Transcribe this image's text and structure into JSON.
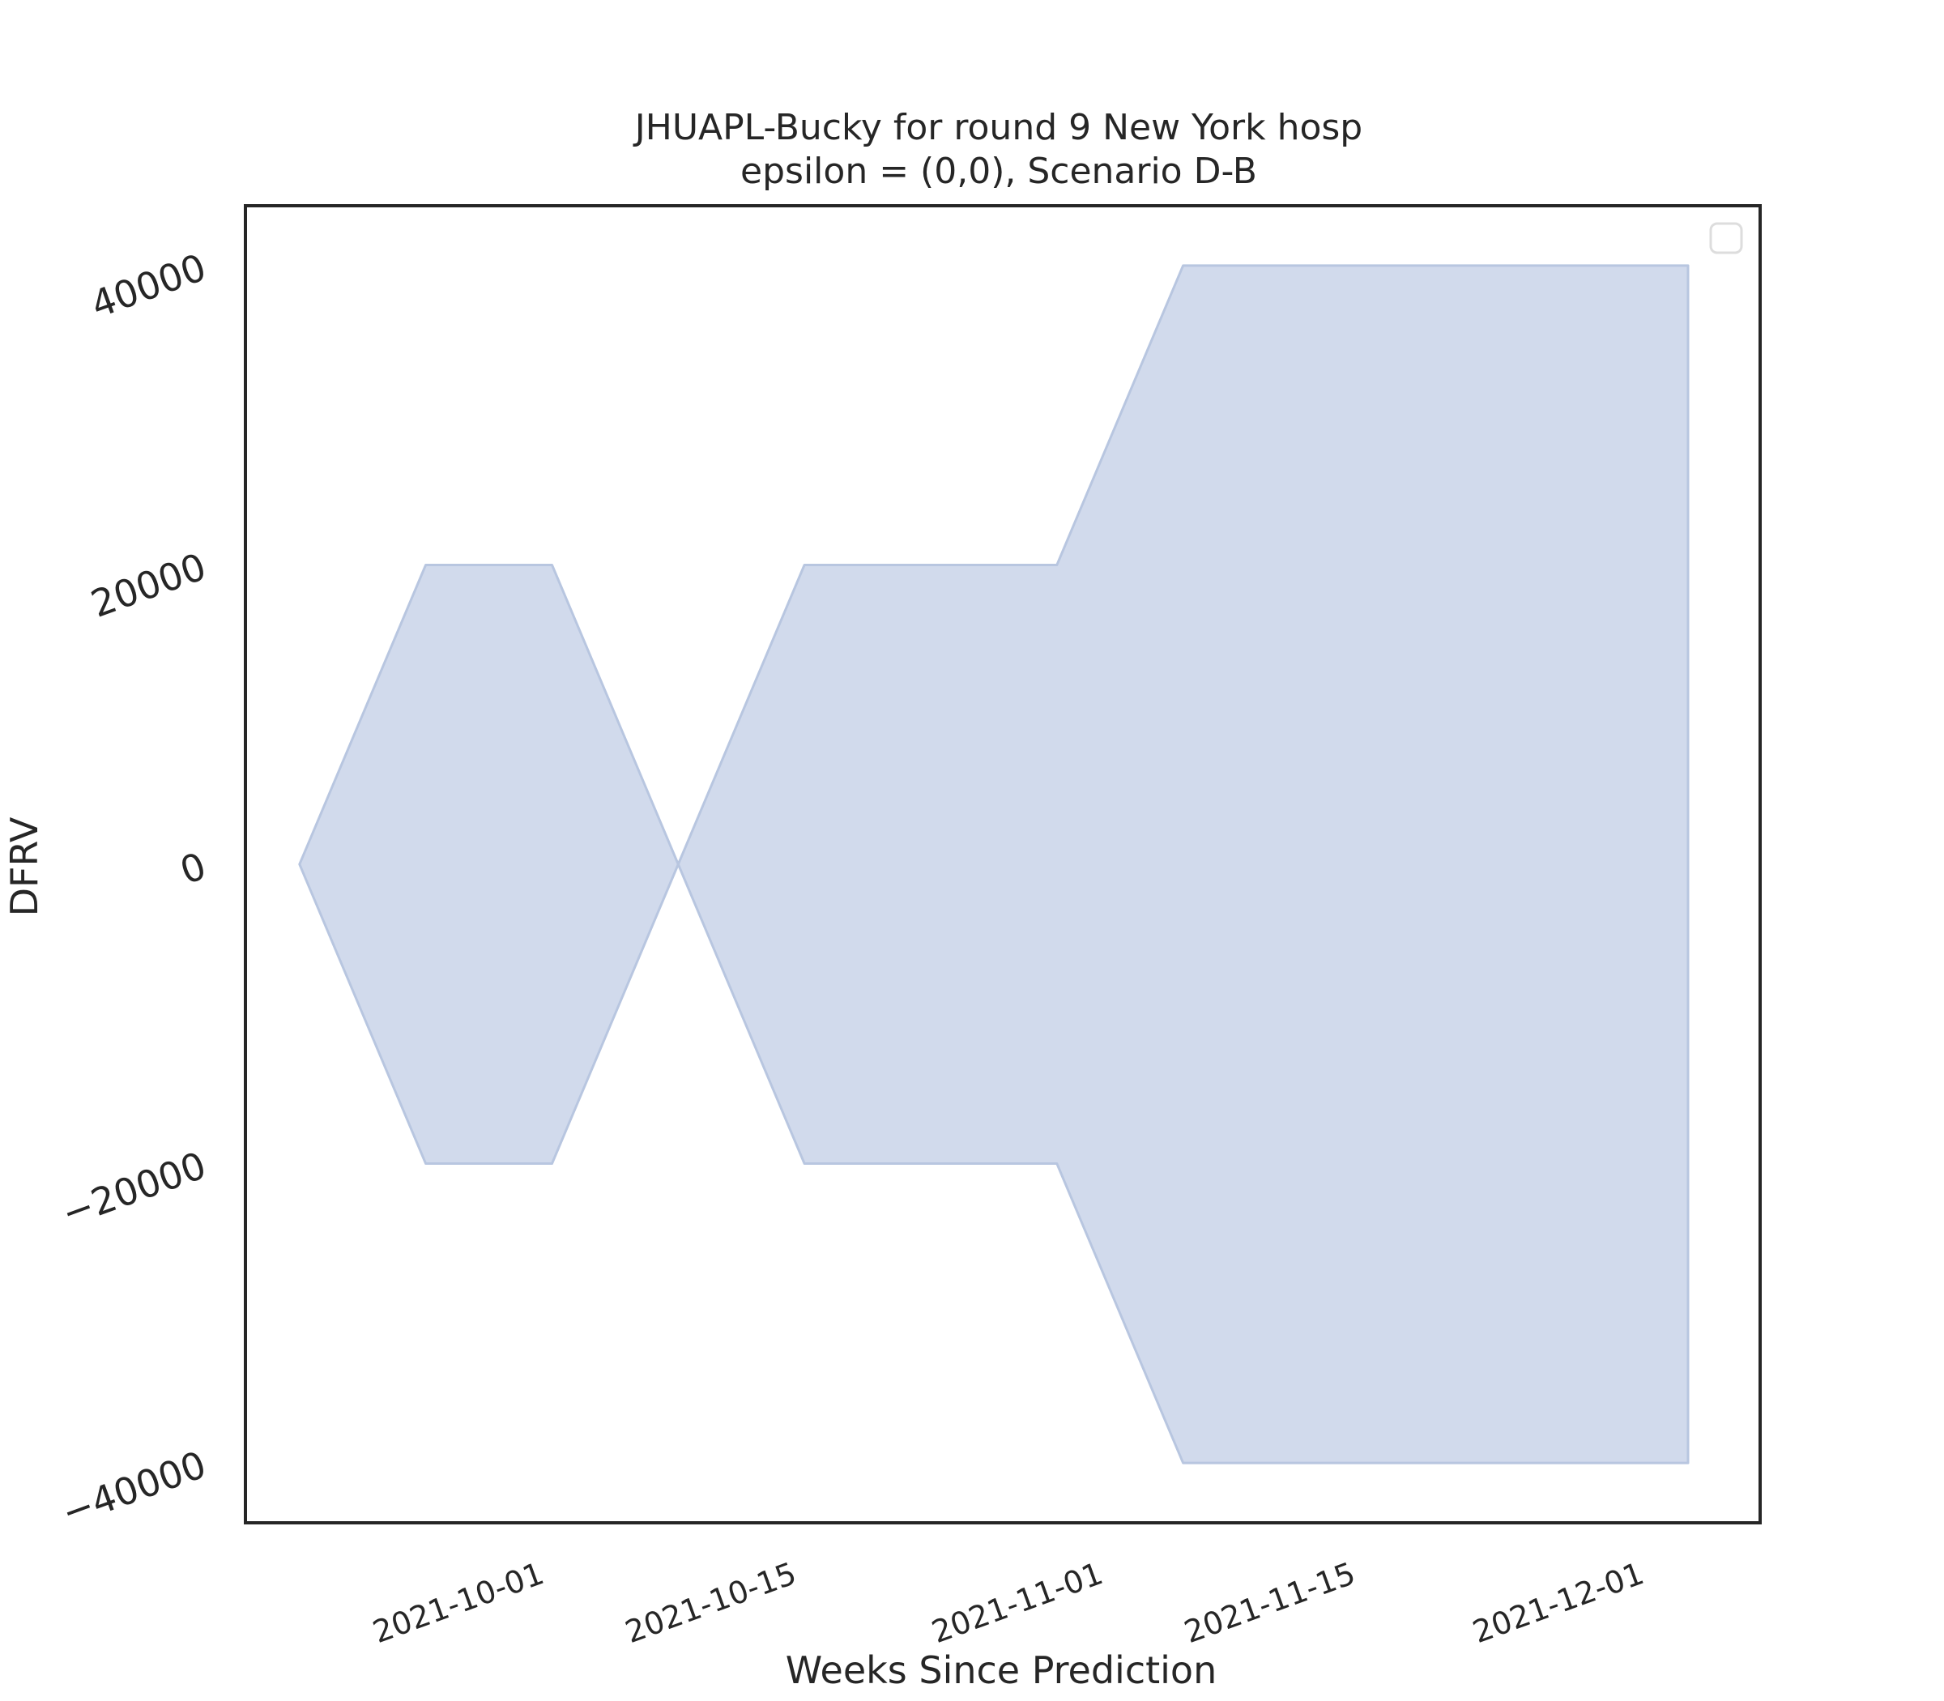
{
  "chart_data": {
    "type": "area",
    "title": "JHUAPL-Bucky for round 9 New York hosp",
    "subtitle": "epsilon = (0,0), Scenario D-B",
    "xlabel": "Weeks Since Prediction",
    "ylabel": "DFRV",
    "x_axis_type": "date",
    "x_ticks": [
      "2021-10-01",
      "2021-10-15",
      "2021-11-01",
      "2021-11-15",
      "2021-12-01"
    ],
    "y_ticks": [
      40000,
      20000,
      0,
      -20000,
      -40000
    ],
    "y_tick_labels": [
      "40000",
      "20000",
      "0",
      "−20000",
      "−40000"
    ],
    "xlim": [
      "2021-09-15",
      "2021-12-08"
    ],
    "ylim": [
      -44000,
      44000
    ],
    "grid": false,
    "legend": {
      "placement": "top-right",
      "entries": []
    },
    "colors": {
      "fill": "#d1daec",
      "edge": "#b8c6e0",
      "frame": "#262626"
    },
    "series": [
      {
        "x": [
          "2021-09-18",
          "2021-09-25",
          "2021-10-02",
          "2021-10-09",
          "2021-10-16",
          "2021-10-23",
          "2021-10-30",
          "2021-11-06",
          "2021-11-13",
          "2021-11-20",
          "2021-11-27",
          "2021-12-04"
        ],
        "upper": [
          0,
          20000,
          20000,
          0,
          20000,
          20000,
          20000,
          40000,
          40000,
          40000,
          40000,
          40000
        ],
        "lower": [
          0,
          -20000,
          -20000,
          0,
          -20000,
          -20000,
          -20000,
          -40000,
          -40000,
          -40000,
          -40000,
          -40000
        ]
      }
    ]
  }
}
